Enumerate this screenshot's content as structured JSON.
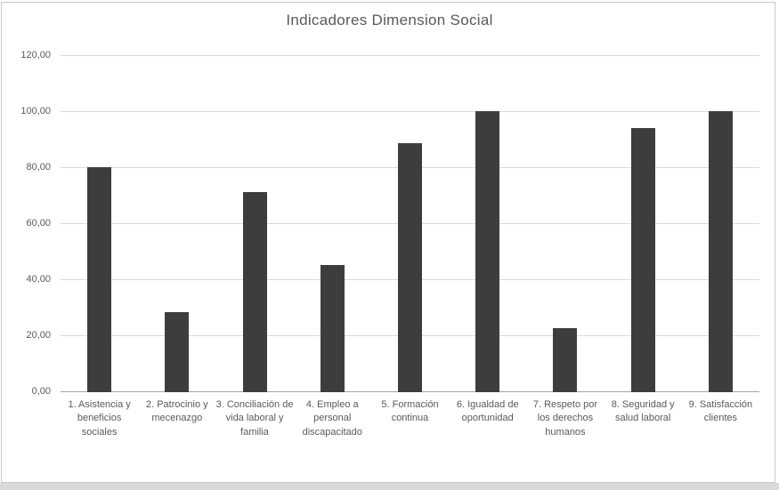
{
  "chart_data": {
    "type": "bar",
    "title": "Indicadores Dimension Social",
    "categories": [
      "1. Asistencia y beneficios sociales",
      "2. Patrocinio y mecenazgo",
      "3. Conciliación de vida laboral y familia",
      "4. Empleo a personal discapacitado",
      "5. Formación continua",
      "6. Igualdad de oportunidad",
      "7. Respeto por los derechos humanos",
      "8. Seguridad y salud laboral",
      "9. Satisfacción clientes"
    ],
    "values": [
      80.0,
      28.5,
      71.3,
      45.4,
      88.6,
      100.0,
      22.7,
      94.2,
      100.0
    ],
    "ylim": [
      0,
      120
    ],
    "ytick_step": 20,
    "ytick_labels": [
      "120,00",
      "100,00",
      "80,00",
      "60,00",
      "40,00",
      "20,00",
      "0,00"
    ],
    "xlabel": "",
    "ylabel": "",
    "grid": true,
    "legend": false,
    "colors": {
      "bar": "#3d3d3d",
      "gridline": "#d9d9d9",
      "axis_line": "#a6a6a6",
      "text": "#595959",
      "frame_border": "#c9c9c9",
      "bottom_strip": "#d9d9d9"
    }
  }
}
